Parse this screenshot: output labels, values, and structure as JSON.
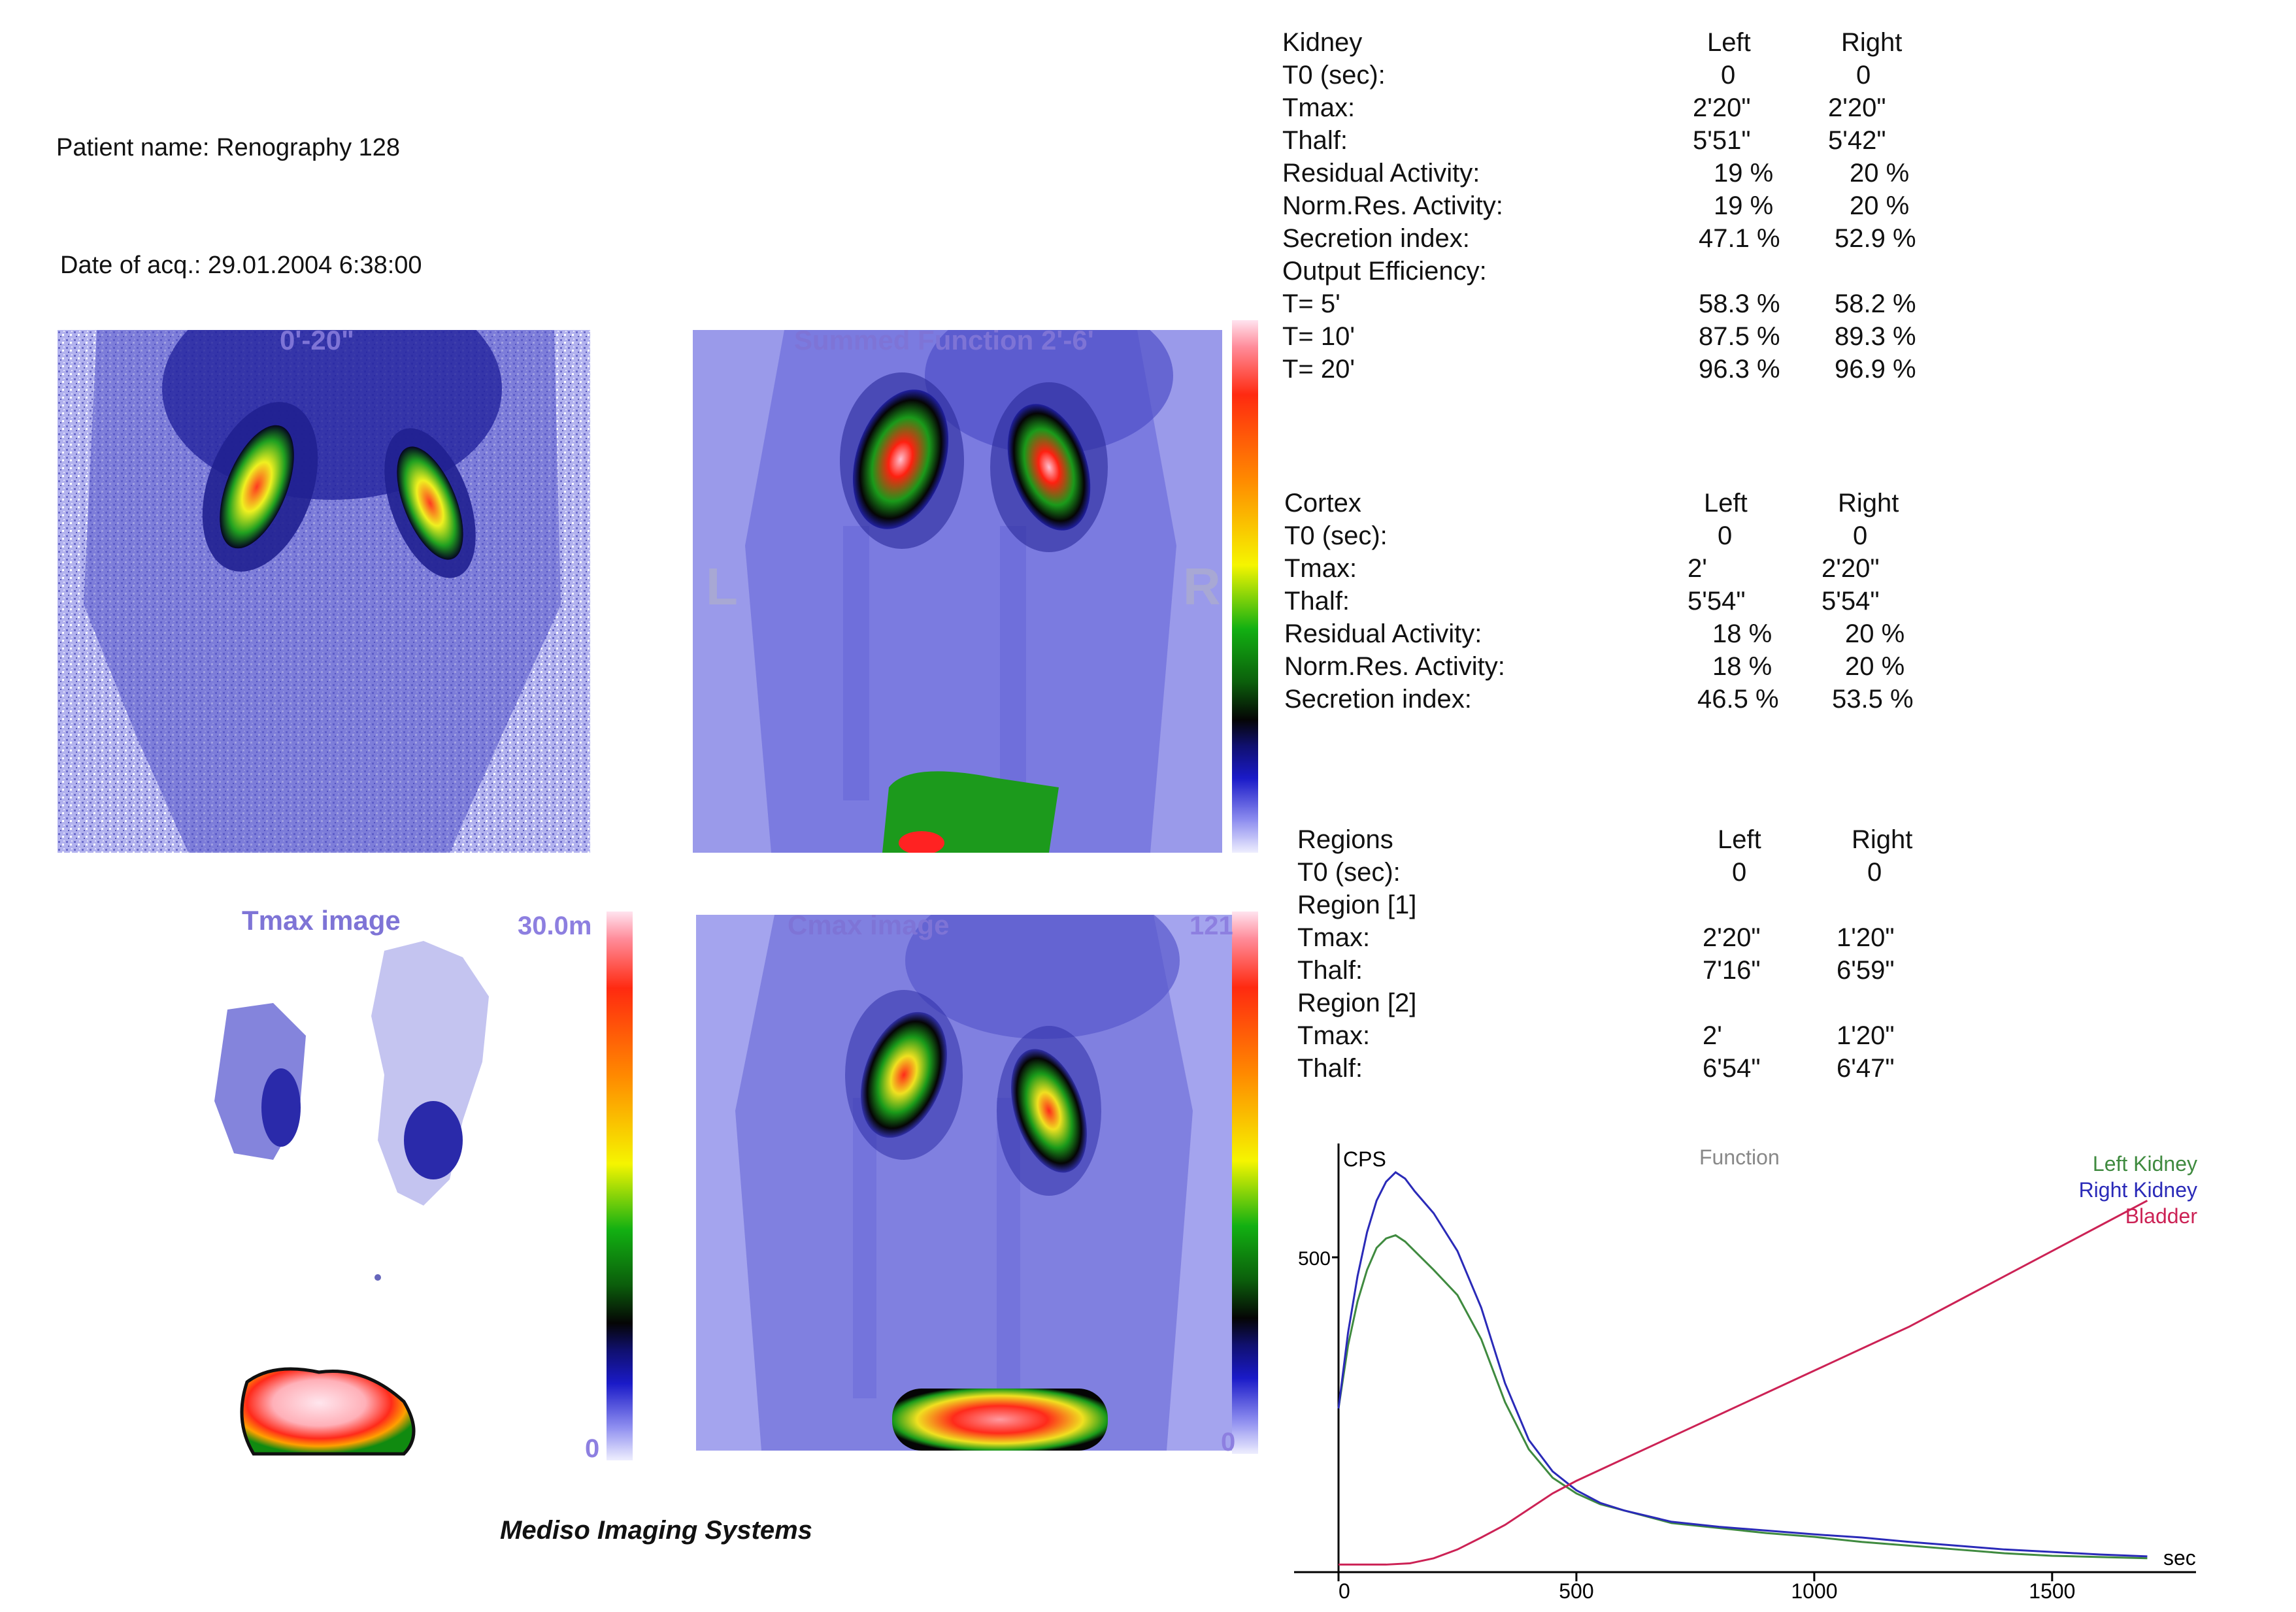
{
  "header": {
    "patient_label": "Patient name:",
    "patient_value": "Renography 128",
    "date_label": "Date of acq.:",
    "date_value": "29.01.2004 6:38:00"
  },
  "images": {
    "early": {
      "title": "0'-20\""
    },
    "summed": {
      "title": "Summed Function 2'-6'",
      "left_marker": "L",
      "right_marker": "R"
    },
    "tmax": {
      "title": "Tmax image",
      "scale_max": "30.0m",
      "scale_min": "0"
    },
    "cmax": {
      "title": "Cmax image",
      "scale_max": "121",
      "scale_min": "0"
    }
  },
  "kidney": {
    "heading": "Kidney",
    "col_left": "Left",
    "col_right": "Right",
    "rows": [
      {
        "label": "T0 (sec):",
        "left": "0",
        "right": "0"
      },
      {
        "label": "Tmax:",
        "left": "2'20\"",
        "right": "2'20\""
      },
      {
        "label": "Thalf:",
        "left": "5'51\"",
        "right": "5'42\""
      },
      {
        "label": "Residual Activity:",
        "left": "19 %",
        "right": "20 %"
      },
      {
        "label": "Norm.Res. Activity:",
        "left": "19 %",
        "right": "20 %"
      },
      {
        "label": "Secretion index:",
        "left": "47.1 %",
        "right": "52.9 %"
      },
      {
        "label": "Output Efficiency:",
        "left": "",
        "right": ""
      },
      {
        "label": "T=  5'",
        "left": "58.3 %",
        "right": "58.2 %"
      },
      {
        "label": "T= 10'",
        "left": "87.5 %",
        "right": "89.3 %"
      },
      {
        "label": "T= 20'",
        "left": "96.3 %",
        "right": "96.9 %"
      }
    ]
  },
  "cortex": {
    "heading": "Cortex",
    "col_left": "Left",
    "col_right": "Right",
    "rows": [
      {
        "label": "T0 (sec):",
        "left": "0",
        "right": "0"
      },
      {
        "label": "Tmax:",
        "left": "2'",
        "right": "2'20\""
      },
      {
        "label": "Thalf:",
        "left": "5'54\"",
        "right": "5'54\""
      },
      {
        "label": "Residual Activity:",
        "left": "18 %",
        "right": "20 %"
      },
      {
        "label": "Norm.Res. Activity:",
        "left": "18 %",
        "right": "20 %"
      },
      {
        "label": "Secretion index:",
        "left": "46.5 %",
        "right": "53.5 %"
      }
    ]
  },
  "regions": {
    "heading": "Regions",
    "col_left": "Left",
    "col_right": "Right",
    "rows": [
      {
        "label": "T0 (sec):",
        "left": "0",
        "right": "0"
      },
      {
        "label": "Region [1]",
        "left": "",
        "right": ""
      },
      {
        "label": "Tmax:",
        "left": "2'20\"",
        "right": "1'20\""
      },
      {
        "label": "Thalf:",
        "left": "7'16\"",
        "right": "6'59\""
      },
      {
        "label": "Region [2]",
        "left": "",
        "right": ""
      },
      {
        "label": "Tmax:",
        "left": "2'",
        "right": "1'20\""
      },
      {
        "label": "Thalf:",
        "left": "6'54\"",
        "right": "6'47\""
      }
    ]
  },
  "footer": {
    "brand": "Mediso Imaging Systems"
  },
  "chart_data": {
    "type": "line",
    "title": "Function",
    "xlabel": "sec",
    "ylabel": "CPS",
    "xlim": [
      0,
      1720
    ],
    "ylim": [
      0,
      660
    ],
    "x_ticks": [
      0,
      500,
      1000,
      1500
    ],
    "y_ticks": [
      500
    ],
    "legend_position": "top-right",
    "series": [
      {
        "name": "Left Kidney",
        "color": "#3f8a3f",
        "x": [
          0,
          20,
          40,
          60,
          80,
          100,
          120,
          140,
          160,
          200,
          250,
          300,
          350,
          400,
          450,
          500,
          550,
          600,
          700,
          800,
          900,
          1000,
          1100,
          1200,
          1300,
          1400,
          1500,
          1600,
          1700
        ],
        "y": [
          260,
          360,
          430,
          480,
          515,
          530,
          535,
          525,
          510,
          480,
          440,
          370,
          270,
          195,
          150,
          125,
          108,
          98,
          78,
          70,
          62,
          56,
          48,
          42,
          36,
          30,
          26,
          24,
          22
        ]
      },
      {
        "name": "Right Kidney",
        "color": "#2a2ab8",
        "x": [
          0,
          20,
          40,
          60,
          80,
          100,
          120,
          140,
          160,
          200,
          250,
          300,
          350,
          400,
          450,
          500,
          550,
          600,
          700,
          800,
          900,
          1000,
          1100,
          1200,
          1300,
          1400,
          1500,
          1600,
          1700
        ],
        "y": [
          260,
          380,
          470,
          540,
          590,
          620,
          635,
          625,
          605,
          570,
          510,
          420,
          300,
          210,
          160,
          130,
          110,
          98,
          80,
          72,
          66,
          60,
          55,
          48,
          42,
          36,
          32,
          28,
          25
        ]
      },
      {
        "name": "Bladder",
        "color": "#cc2255",
        "x": [
          0,
          100,
          150,
          200,
          250,
          300,
          350,
          400,
          450,
          500,
          600,
          700,
          800,
          900,
          1000,
          1100,
          1200,
          1300,
          1400,
          1500,
          1600,
          1700
        ],
        "y": [
          12,
          12,
          14,
          22,
          36,
          55,
          75,
          100,
          125,
          145,
          180,
          215,
          250,
          285,
          320,
          355,
          390,
          430,
          470,
          510,
          550,
          590
        ]
      }
    ]
  }
}
